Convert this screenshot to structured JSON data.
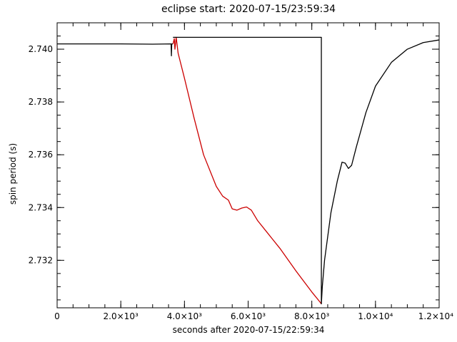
{
  "chart_data": {
    "type": "line",
    "title": "eclipse start: 2020-07-15/23:59:34",
    "xlabel": "seconds after 2020-07-15/22:59:34",
    "ylabel": "spin period (s)",
    "xlim": [
      0,
      12000
    ],
    "ylim": [
      2.7302,
      2.741
    ],
    "x_ticks": [
      {
        "value": 0,
        "label": "0"
      },
      {
        "value": 2000,
        "label": "2.0×10³"
      },
      {
        "value": 4000,
        "label": "4.0×10³"
      },
      {
        "value": 6000,
        "label": "6.0×10³"
      },
      {
        "value": 8000,
        "label": "8.0×10³"
      },
      {
        "value": 10000,
        "label": "1.0×10⁴"
      },
      {
        "value": 12000,
        "label": "1.2×10⁴"
      }
    ],
    "y_ticks": [
      {
        "value": 2.732,
        "label": "2.732"
      },
      {
        "value": 2.734,
        "label": "2.734"
      },
      {
        "value": 2.736,
        "label": "2.736"
      },
      {
        "value": 2.738,
        "label": "2.738"
      },
      {
        "value": 2.74,
        "label": "2.740"
      }
    ],
    "x_minor_step": 500,
    "y_minor_step": 0.0005,
    "grid": false,
    "series": [
      {
        "color": "#000000",
        "points": [
          [
            0,
            2.7402
          ],
          [
            1000,
            2.7402
          ],
          [
            2000,
            2.7402
          ],
          [
            3000,
            2.74019
          ],
          [
            3580,
            2.7402
          ],
          [
            3590,
            2.73975
          ],
          [
            3600,
            2.7402
          ],
          [
            3640,
            2.7402
          ]
        ]
      },
      {
        "color": "#cc0000",
        "points": [
          [
            3640,
            2.7402
          ],
          [
            3680,
            2.7404
          ],
          [
            3700,
            2.74
          ],
          [
            3740,
            2.74045
          ],
          [
            3800,
            2.73985
          ],
          [
            4000,
            2.7389
          ],
          [
            4300,
            2.7374
          ],
          [
            4600,
            2.736
          ],
          [
            5000,
            2.7348
          ],
          [
            5200,
            2.73443
          ],
          [
            5380,
            2.73428
          ],
          [
            5500,
            2.73395
          ],
          [
            5650,
            2.7339
          ],
          [
            5800,
            2.73398
          ],
          [
            5950,
            2.73402
          ],
          [
            6100,
            2.7339
          ],
          [
            6300,
            2.7335
          ],
          [
            6600,
            2.73305
          ],
          [
            7000,
            2.73245
          ],
          [
            7500,
            2.7316
          ],
          [
            8000,
            2.7308
          ],
          [
            8250,
            2.73043
          ],
          [
            8300,
            2.73035
          ]
        ]
      },
      {
        "color": "#000000",
        "points": [
          [
            3640,
            2.74045
          ],
          [
            8300,
            2.74045
          ],
          [
            8300,
            2.73035
          ],
          [
            8330,
            2.731
          ],
          [
            8400,
            2.732
          ],
          [
            8600,
            2.7338
          ],
          [
            8800,
            2.735
          ],
          [
            8950,
            2.73572
          ],
          [
            9050,
            2.73568
          ],
          [
            9150,
            2.73548
          ],
          [
            9250,
            2.7356
          ],
          [
            9400,
            2.7363
          ],
          [
            9700,
            2.7376
          ],
          [
            10000,
            2.7386
          ],
          [
            10500,
            2.7395
          ],
          [
            11000,
            2.74
          ],
          [
            11500,
            2.74025
          ],
          [
            12000,
            2.74035
          ]
        ]
      }
    ]
  }
}
